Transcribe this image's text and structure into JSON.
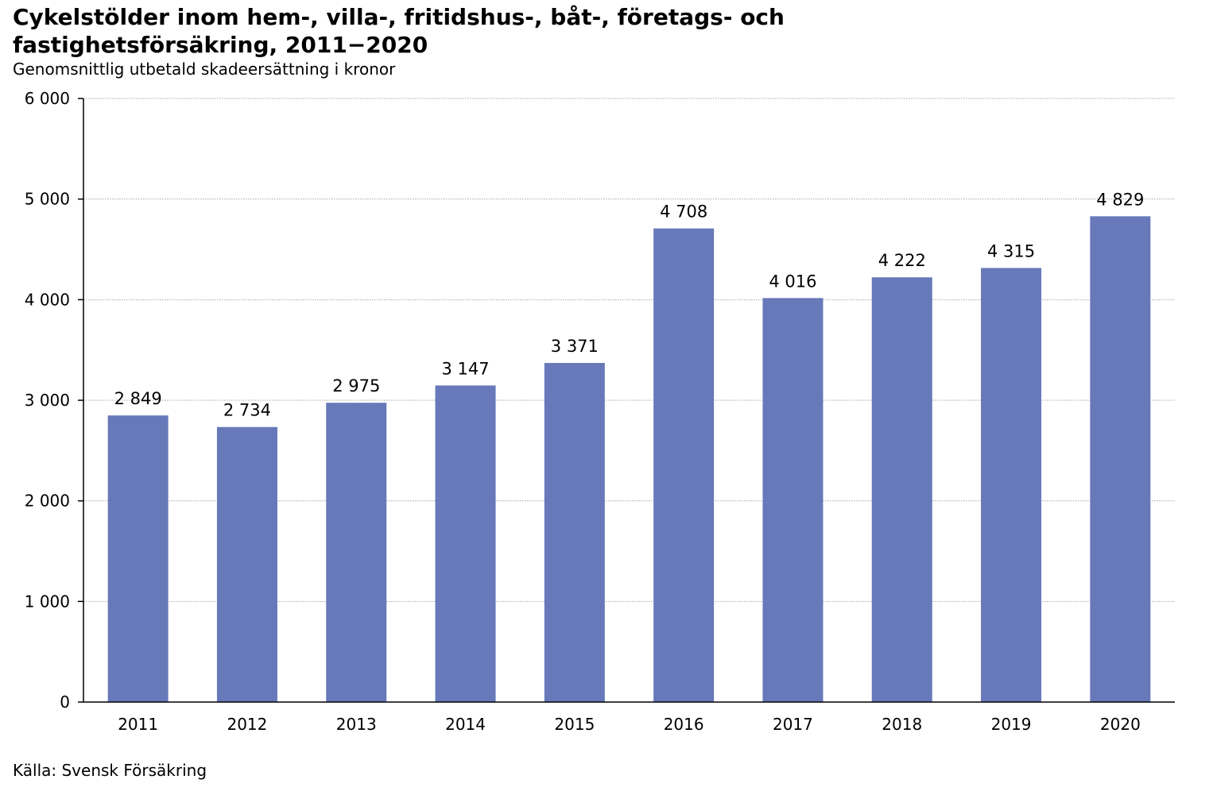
{
  "chart_data": {
    "type": "bar",
    "title": "Cykelstölder inom hem-, villa-, fritidshus-, båt-, företags- och fastighetsförsäkring, 2011−2020",
    "subtitle": "Genomsnittlig utbetald skadeersättning i kronor",
    "source": "Källa: Svensk Försäkring",
    "categories": [
      "2011",
      "2012",
      "2013",
      "2014",
      "2015",
      "2016",
      "2017",
      "2018",
      "2019",
      "2020"
    ],
    "values": [
      2849,
      2734,
      2975,
      3147,
      3371,
      4708,
      4016,
      4222,
      4315,
      4829
    ],
    "value_labels": [
      "2 849",
      "2 734",
      "2 975",
      "3 147",
      "3 371",
      "4 708",
      "4 016",
      "4 222",
      "4 315",
      "4 829"
    ],
    "yticks": [
      0,
      1000,
      2000,
      3000,
      4000,
      5000,
      6000
    ],
    "ytick_labels": [
      "0",
      "1 000",
      "2 000",
      "3 000",
      "4 000",
      "5 000",
      "6 000"
    ],
    "ylim": [
      0,
      6000
    ],
    "grid": true,
    "colors": {
      "bar": "#6779b9",
      "grid": "#a6a6a6",
      "axis": "#000000"
    }
  }
}
